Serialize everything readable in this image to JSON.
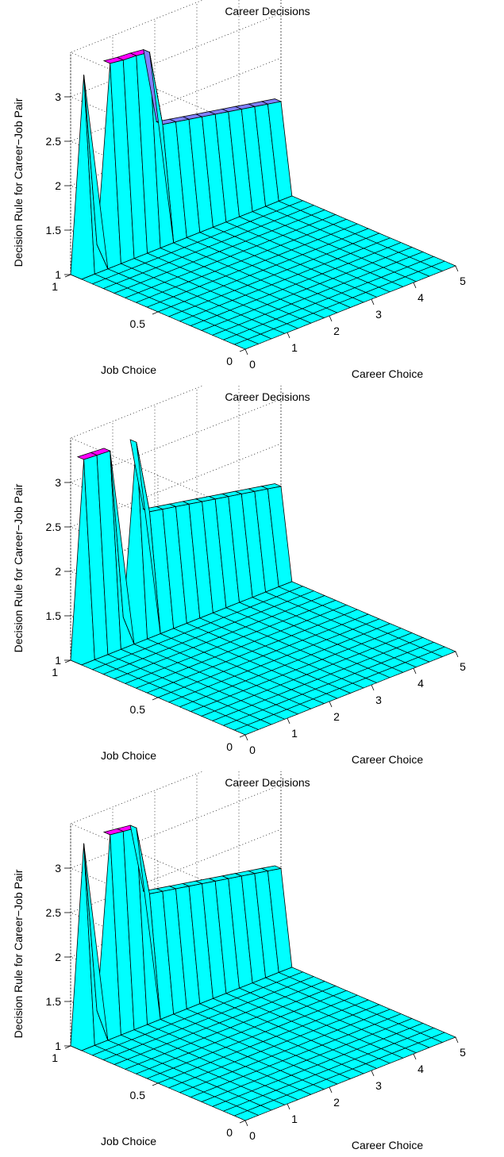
{
  "figure": {
    "panels": [
      {
        "title": "Career Decisions",
        "xlabel": "Career Choice",
        "ylabel": "Job Choice",
        "zlabel": "Decision Rule for Career−Job Pair"
      },
      {
        "title": "Career Decisions",
        "xlabel": "Career Choice",
        "ylabel": "Job Choice",
        "zlabel": "Decision Rule for Career−Job Pair"
      },
      {
        "title": "Career Decisions",
        "xlabel": "Career Choice",
        "ylabel": "Job Choice",
        "zlabel": "Decision Rule for Career−Job Pair"
      }
    ]
  },
  "chart_data": [
    {
      "type": "surface3d",
      "title": "Career Decisions",
      "xlabel": "Career Choice",
      "ylabel": "Job Choice",
      "zlabel": "Decision Rule for Career−Job Pair",
      "xlim": [
        0,
        5
      ],
      "ylim": [
        0,
        1
      ],
      "zlim": [
        1,
        3
      ],
      "xticks": [
        "0",
        "1",
        "2",
        "3",
        "4",
        "5"
      ],
      "yticks": [
        "0",
        "0.5",
        "1"
      ],
      "zticks": [
        "1",
        "1.5",
        "2",
        "2.5",
        "3"
      ],
      "grid": true,
      "colors": {
        "surface": "#00ffff",
        "peak": "#ff00ff",
        "ridge_top": "#8080ff",
        "edge": "#000000"
      },
      "grid_x": [
        0,
        0.3125,
        0.625,
        0.9375,
        1.25,
        1.5625,
        1.875,
        2.1875,
        2.5,
        2.8125,
        3.125,
        3.4375,
        3.75,
        4.0625,
        4.375,
        4.6875,
        5.0
      ],
      "grid_y": [
        0,
        0.0625,
        0.125,
        0.1875,
        0.25,
        0.3125,
        0.375,
        0.4375,
        0.5,
        0.5625,
        0.625,
        0.6875,
        0.75,
        0.8125,
        0.875,
        0.9375,
        1.0
      ],
      "ridge": {
        "y": 1,
        "x": [
          0,
          0.3125,
          0.625,
          0.9375,
          1.25,
          1.5625,
          1.875,
          2.1875,
          2.5,
          2.8125,
          3.125,
          3.4375,
          3.75,
          4.0625,
          4.375,
          4.6875,
          5.0
        ],
        "z": [
          1.0,
          3.19,
          1.22,
          3.2,
          3.18,
          3.17,
          3.15,
          2.28,
          2.25,
          2.22,
          2.19,
          2.16,
          2.13,
          2.1,
          2.07,
          2.04,
          2.01
        ]
      },
      "floor_z": 1.0
    },
    {
      "type": "surface3d",
      "title": "Career Decisions",
      "xlabel": "Career Choice",
      "ylabel": "Job Choice",
      "zlabel": "Decision Rule for Career−Job Pair",
      "xlim": [
        0,
        5
      ],
      "ylim": [
        0,
        1
      ],
      "zlim": [
        1,
        3
      ],
      "xticks": [
        "0",
        "1",
        "2",
        "3",
        "4",
        "5"
      ],
      "yticks": [
        "0",
        "0.5",
        "1"
      ],
      "zticks": [
        "1",
        "1.5",
        "2",
        "2.5",
        "3"
      ],
      "grid": true,
      "colors": {
        "surface": "#00ffff",
        "peak": "#ff00ff",
        "ridge_top": "#00ffff",
        "edge": "#000000"
      },
      "grid_x": [
        0,
        0.3125,
        0.625,
        0.9375,
        1.25,
        1.5625,
        1.875,
        2.1875,
        2.5,
        2.8125,
        3.125,
        3.4375,
        3.75,
        4.0625,
        4.375,
        4.6875,
        5.0
      ],
      "grid_y": [
        0,
        0.0625,
        0.125,
        0.1875,
        0.25,
        0.3125,
        0.375,
        0.4375,
        0.5,
        0.5625,
        0.625,
        0.6875,
        0.75,
        0.8125,
        0.875,
        0.9375,
        1.0
      ],
      "ridge": {
        "y": 1,
        "x": [
          0,
          0.3125,
          0.625,
          0.9375,
          1.25,
          1.5625,
          1.875,
          2.1875,
          2.5,
          2.8125,
          3.125,
          3.4375,
          3.75,
          4.0625,
          4.375,
          4.6875,
          5.0
        ],
        "z": [
          1.0,
          3.2,
          3.19,
          3.18,
          1.25,
          3.16,
          2.32,
          2.29,
          2.26,
          2.23,
          2.2,
          2.17,
          2.14,
          2.11,
          2.08,
          2.05,
          2.02
        ]
      },
      "floor_z": 1.0
    },
    {
      "type": "surface3d",
      "title": "Career Decisions",
      "xlabel": "Career Choice",
      "ylabel": "Job Choice",
      "zlabel": "Decision Rule for Career−Job Pair",
      "xlim": [
        0,
        5
      ],
      "ylim": [
        0,
        1
      ],
      "zlim": [
        1,
        3
      ],
      "xticks": [
        "0",
        "1",
        "2",
        "3",
        "4",
        "5"
      ],
      "yticks": [
        "0",
        "0.5",
        "1"
      ],
      "zticks": [
        "1",
        "1.5",
        "2",
        "2.5",
        "3"
      ],
      "grid": true,
      "colors": {
        "surface": "#00ffff",
        "peak": "#ff00ff",
        "ridge_top": "#00ffff",
        "edge": "#000000"
      },
      "grid_x": [
        0,
        0.3125,
        0.625,
        0.9375,
        1.25,
        1.5625,
        1.875,
        2.1875,
        2.5,
        2.8125,
        3.125,
        3.4375,
        3.75,
        4.0625,
        4.375,
        4.6875,
        5.0
      ],
      "grid_y": [
        0,
        0.0625,
        0.125,
        0.1875,
        0.25,
        0.3125,
        0.375,
        0.4375,
        0.5,
        0.5625,
        0.625,
        0.6875,
        0.75,
        0.8125,
        0.875,
        0.9375,
        1.0
      ],
      "ridge": {
        "y": 1,
        "x": [
          0,
          0.3125,
          0.625,
          0.9375,
          1.25,
          1.5625,
          1.875,
          2.1875,
          2.5,
          2.8125,
          3.125,
          3.4375,
          3.75,
          4.0625,
          4.375,
          4.6875,
          5.0
        ],
        "z": [
          1.0,
          3.22,
          1.28,
          3.2,
          3.18,
          3.16,
          2.36,
          2.33,
          2.3,
          2.27,
          2.24,
          2.21,
          2.18,
          2.15,
          2.12,
          2.09,
          2.06
        ]
      },
      "floor_z": 1.0
    }
  ]
}
